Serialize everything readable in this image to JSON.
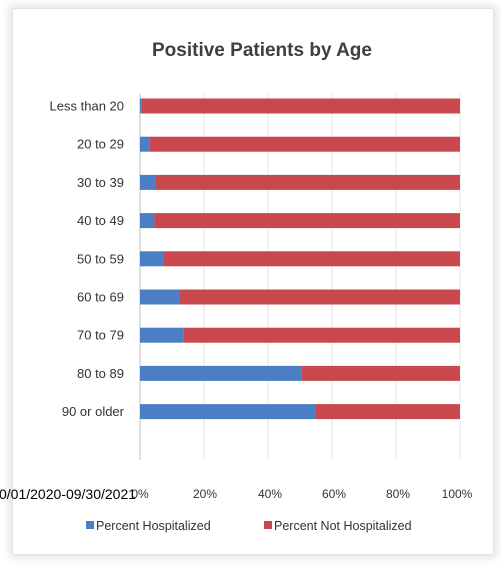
{
  "chart_data": {
    "type": "bar",
    "orientation": "horizontal",
    "stacked": true,
    "title": "Positive Patients by Age",
    "categories": [
      "Less than 20",
      "20 to 29",
      "30 to 39",
      "40 to 49",
      "50 to 59",
      "60 to 69",
      "70 to 79",
      "80 to 89",
      "90 or older"
    ],
    "series": [
      {
        "name": "Percent Hospitalized",
        "color": "#4a7fc6",
        "values": [
          0.5,
          3,
          5,
          4.5,
          7.5,
          12.5,
          13.5,
          50.5,
          55
        ]
      },
      {
        "name": "Percent Not Hospitalized",
        "color": "#c8484d",
        "values": [
          99.5,
          97,
          95,
          95.5,
          92.5,
          87.5,
          86.5,
          49.5,
          45
        ]
      }
    ],
    "x_ticks": [
      "0%",
      "20%",
      "40%",
      "60%",
      "80%",
      "100%"
    ],
    "xlim": [
      0,
      100
    ],
    "grid": true,
    "legend_position": "bottom"
  },
  "footnote": "0/01/2020-09/30/2021"
}
